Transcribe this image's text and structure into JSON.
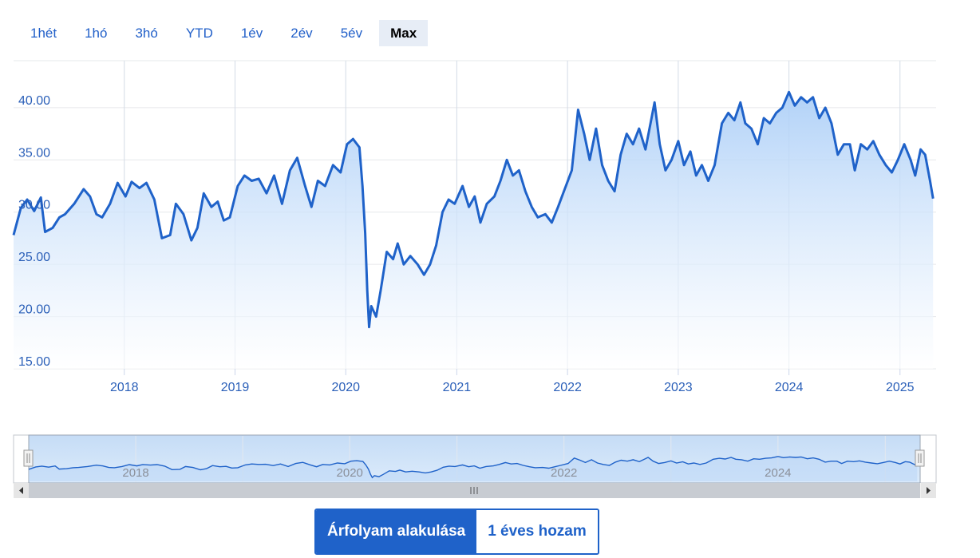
{
  "range_buttons": [
    "1hét",
    "1hó",
    "3hó",
    "YTD",
    "1év",
    "2év",
    "5év",
    "Max"
  ],
  "active_range": "Max",
  "toggle": {
    "price_label": "Árfolyam alakulása",
    "return_label": "1 éves hozam"
  },
  "colors": {
    "line": "#1f62c9",
    "accent": "#1f62c9",
    "axis_text": "#2a5fb8",
    "nav_text": "#8a8f99"
  },
  "chart_data": {
    "type": "area",
    "y_ticks": [
      "15.00",
      "20.00",
      "25.00",
      "30.00",
      "35.00",
      "40.00"
    ],
    "x_ticks": [
      "2018",
      "2019",
      "2020",
      "2021",
      "2022",
      "2023",
      "2024",
      "2025"
    ],
    "navigator_ticks": [
      "2018",
      "2020",
      "2022",
      "2024"
    ],
    "ylim": [
      15,
      44.5
    ],
    "xlim": [
      "2017-01-01",
      "2025-04-30"
    ],
    "grid": true,
    "series": [
      {
        "points": [
          [
            "2017-01-01",
            27.8
          ],
          [
            "2017-01-25",
            30.4
          ],
          [
            "2017-02-15",
            31.2
          ],
          [
            "2017-03-10",
            30.1
          ],
          [
            "2017-04-01",
            31.4
          ],
          [
            "2017-04-15",
            28.1
          ],
          [
            "2017-05-10",
            28.5
          ],
          [
            "2017-06-01",
            29.5
          ],
          [
            "2017-06-20",
            29.8
          ],
          [
            "2017-07-20",
            30.8
          ],
          [
            "2017-08-20",
            32.2
          ],
          [
            "2017-09-10",
            31.5
          ],
          [
            "2017-10-01",
            29.8
          ],
          [
            "2017-10-20",
            29.5
          ],
          [
            "2017-11-15",
            30.8
          ],
          [
            "2017-12-10",
            32.8
          ],
          [
            "2018-01-05",
            31.5
          ],
          [
            "2018-01-25",
            32.9
          ],
          [
            "2018-02-20",
            32.3
          ],
          [
            "2018-03-15",
            32.8
          ],
          [
            "2018-04-10",
            31.2
          ],
          [
            "2018-05-05",
            27.5
          ],
          [
            "2018-06-01",
            27.8
          ],
          [
            "2018-06-20",
            30.8
          ],
          [
            "2018-07-15",
            29.8
          ],
          [
            "2018-08-10",
            27.3
          ],
          [
            "2018-08-30",
            28.5
          ],
          [
            "2018-09-20",
            31.8
          ],
          [
            "2018-10-15",
            30.5
          ],
          [
            "2018-11-05",
            31.0
          ],
          [
            "2018-11-25",
            29.2
          ],
          [
            "2018-12-15",
            29.5
          ],
          [
            "2019-01-10",
            32.5
          ],
          [
            "2019-02-01",
            33.5
          ],
          [
            "2019-02-25",
            33.0
          ],
          [
            "2019-03-20",
            33.2
          ],
          [
            "2019-04-15",
            31.8
          ],
          [
            "2019-05-10",
            33.5
          ],
          [
            "2019-06-05",
            30.8
          ],
          [
            "2019-07-01",
            34.0
          ],
          [
            "2019-07-25",
            35.2
          ],
          [
            "2019-08-20",
            32.5
          ],
          [
            "2019-09-10",
            30.5
          ],
          [
            "2019-10-01",
            33.0
          ],
          [
            "2019-10-25",
            32.5
          ],
          [
            "2019-11-20",
            34.5
          ],
          [
            "2019-12-15",
            33.8
          ],
          [
            "2020-01-05",
            36.5
          ],
          [
            "2020-01-25",
            37.0
          ],
          [
            "2020-02-15",
            36.2
          ],
          [
            "2020-02-25",
            32.5
          ],
          [
            "2020-03-05",
            28.0
          ],
          [
            "2020-03-12",
            22.5
          ],
          [
            "2020-03-18",
            19.0
          ],
          [
            "2020-03-25",
            21.0
          ],
          [
            "2020-04-10",
            20.0
          ],
          [
            "2020-04-25",
            22.5
          ],
          [
            "2020-05-15",
            26.2
          ],
          [
            "2020-06-05",
            25.5
          ],
          [
            "2020-06-20",
            27.0
          ],
          [
            "2020-07-10",
            25.0
          ],
          [
            "2020-08-01",
            25.8
          ],
          [
            "2020-08-25",
            25.0
          ],
          [
            "2020-09-15",
            24.0
          ],
          [
            "2020-10-05",
            25.0
          ],
          [
            "2020-10-25",
            26.8
          ],
          [
            "2020-11-15",
            30.0
          ],
          [
            "2020-12-05",
            31.2
          ],
          [
            "2020-12-25",
            30.8
          ],
          [
            "2021-01-20",
            32.5
          ],
          [
            "2021-02-10",
            30.5
          ],
          [
            "2021-03-01",
            31.5
          ],
          [
            "2021-03-20",
            29.0
          ],
          [
            "2021-04-10",
            30.8
          ],
          [
            "2021-05-05",
            31.5
          ],
          [
            "2021-05-25",
            33.0
          ],
          [
            "2021-06-15",
            35.0
          ],
          [
            "2021-07-05",
            33.5
          ],
          [
            "2021-07-25",
            34.0
          ],
          [
            "2021-08-15",
            32.0
          ],
          [
            "2021-09-05",
            30.5
          ],
          [
            "2021-09-25",
            29.5
          ],
          [
            "2021-10-20",
            29.8
          ],
          [
            "2021-11-10",
            29.0
          ],
          [
            "2021-12-01",
            30.5
          ],
          [
            "2021-12-20",
            32.0
          ],
          [
            "2022-01-15",
            34.0
          ],
          [
            "2022-02-05",
            39.8
          ],
          [
            "2022-02-25",
            37.5
          ],
          [
            "2022-03-15",
            35.0
          ],
          [
            "2022-04-05",
            38.0
          ],
          [
            "2022-04-25",
            34.5
          ],
          [
            "2022-05-15",
            33.0
          ],
          [
            "2022-06-05",
            32.0
          ],
          [
            "2022-06-25",
            35.5
          ],
          [
            "2022-07-15",
            37.5
          ],
          [
            "2022-08-05",
            36.5
          ],
          [
            "2022-08-25",
            38.0
          ],
          [
            "2022-09-15",
            36.0
          ],
          [
            "2022-10-05",
            39.0
          ],
          [
            "2022-10-15",
            40.5
          ],
          [
            "2022-11-01",
            36.5
          ],
          [
            "2022-11-20",
            34.0
          ],
          [
            "2022-12-10",
            35.0
          ],
          [
            "2023-01-01",
            36.8
          ],
          [
            "2023-01-20",
            34.5
          ],
          [
            "2023-02-10",
            35.8
          ],
          [
            "2023-03-01",
            33.5
          ],
          [
            "2023-03-20",
            34.5
          ],
          [
            "2023-04-10",
            33.0
          ],
          [
            "2023-05-01",
            34.5
          ],
          [
            "2023-05-25",
            38.5
          ],
          [
            "2023-06-15",
            39.5
          ],
          [
            "2023-07-05",
            38.8
          ],
          [
            "2023-07-25",
            40.5
          ],
          [
            "2023-08-10",
            38.5
          ],
          [
            "2023-08-30",
            38.0
          ],
          [
            "2023-09-20",
            36.5
          ],
          [
            "2023-10-10",
            39.0
          ],
          [
            "2023-10-30",
            38.5
          ],
          [
            "2023-11-20",
            39.5
          ],
          [
            "2023-12-10",
            40.0
          ],
          [
            "2024-01-01",
            41.5
          ],
          [
            "2024-01-20",
            40.2
          ],
          [
            "2024-02-10",
            41.0
          ],
          [
            "2024-03-01",
            40.5
          ],
          [
            "2024-03-20",
            41.0
          ],
          [
            "2024-04-10",
            39.0
          ],
          [
            "2024-04-30",
            40.0
          ],
          [
            "2024-05-20",
            38.5
          ],
          [
            "2024-06-10",
            35.5
          ],
          [
            "2024-06-30",
            36.5
          ],
          [
            "2024-07-20",
            36.5
          ],
          [
            "2024-08-05",
            34.0
          ],
          [
            "2024-08-25",
            36.5
          ],
          [
            "2024-09-15",
            36.0
          ],
          [
            "2024-10-05",
            36.8
          ],
          [
            "2024-10-25",
            35.5
          ],
          [
            "2024-11-15",
            34.5
          ],
          [
            "2024-12-05",
            33.8
          ],
          [
            "2024-12-25",
            35.0
          ],
          [
            "2025-01-15",
            36.5
          ],
          [
            "2025-02-05",
            35.0
          ],
          [
            "2025-02-20",
            33.5
          ],
          [
            "2025-03-10",
            36.0
          ],
          [
            "2025-03-25",
            35.5
          ],
          [
            "2025-04-10",
            33.0
          ],
          [
            "2025-04-20",
            31.3
          ]
        ]
      }
    ]
  }
}
